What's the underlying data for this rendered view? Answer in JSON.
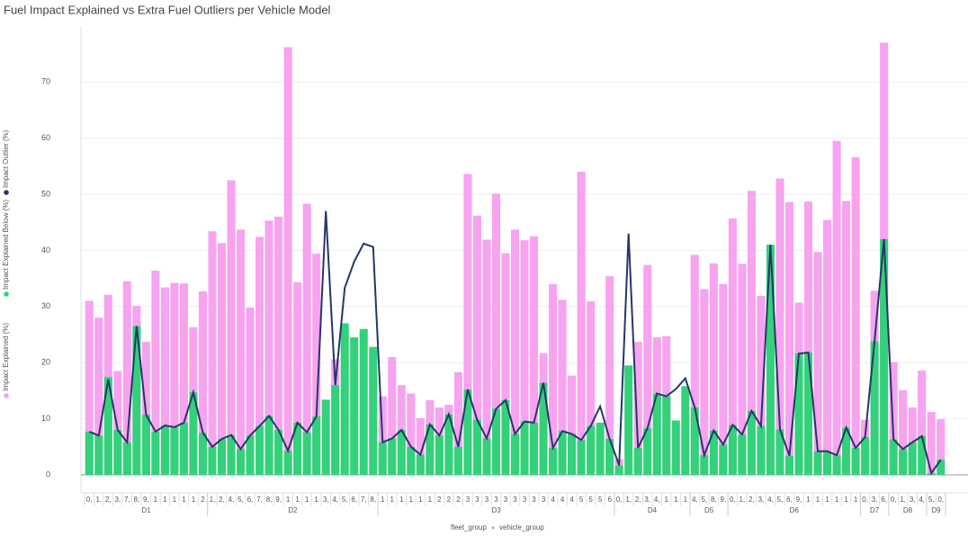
{
  "chart_data": {
    "type": "bar",
    "title": "Fuel Impact Explained vs Extra Fuel Outliers per Vehicle Model",
    "xlabel": [
      "fleet_group",
      "vehicle_group"
    ],
    "categories": [
      "0,",
      "1,",
      "2,",
      "3,",
      "7,",
      "8,",
      "9,",
      "1",
      "1",
      "1",
      "1",
      "1",
      "2",
      "1,",
      "2,",
      "4,",
      "5,",
      "6,",
      "7,",
      "8,",
      "9,",
      "1",
      "1",
      "1",
      "1",
      "3,",
      "4,",
      "5,",
      "6,",
      "7,",
      "8,",
      "1",
      "1",
      "1",
      "1",
      "1",
      "1",
      "2",
      "2",
      "2",
      "3",
      "3",
      "3",
      "3",
      "3",
      "3",
      "3",
      "3",
      "3",
      "4",
      "4",
      "4",
      "5",
      "5",
      "5",
      "6",
      "0,",
      "1,",
      "2,",
      "3,",
      "4,",
      "1",
      "1",
      "1",
      "4,",
      "5,",
      "8,",
      "9,",
      "0,",
      "1,",
      "2,",
      "3,",
      "4,",
      "5,",
      "6,",
      "9,",
      "1",
      "1",
      "1",
      "1",
      "1",
      "1",
      "0,",
      "3,",
      "6,",
      "0,",
      "1,",
      "3,",
      "4,",
      "5,",
      "0,"
    ],
    "fleet": [
      "D1",
      "D1",
      "D1",
      "D1",
      "D1",
      "D1",
      "D1",
      "D1",
      "D1",
      "D1",
      "D1",
      "D1",
      "D1",
      "D2",
      "D2",
      "D2",
      "D2",
      "D2",
      "D2",
      "D2",
      "D2",
      "D2",
      "D2",
      "D2",
      "D2",
      "D2",
      "D2",
      "D2",
      "D2",
      "D2",
      "D2",
      "D3",
      "D3",
      "D3",
      "D3",
      "D3",
      "D3",
      "D3",
      "D3",
      "D3",
      "D3",
      "D3",
      "D3",
      "D3",
      "D3",
      "D3",
      "D3",
      "D3",
      "D3",
      "D3",
      "D3",
      "D3",
      "D3",
      "D3",
      "D3",
      "D3",
      "D4",
      "D4",
      "D4",
      "D4",
      "D4",
      "D4",
      "D4",
      "D4",
      "D5",
      "D5",
      "D5",
      "D5",
      "D6",
      "D6",
      "D6",
      "D6",
      "D6",
      "D6",
      "D6",
      "D6",
      "D6",
      "D6",
      "D6",
      "D6",
      "D6",
      "D6",
      "D7",
      "D7",
      "D7",
      "D8",
      "D8",
      "D8",
      "D8",
      "D9",
      "D9"
    ],
    "series": [
      {
        "name": "Impact Explained (%)",
        "color": "#f7a3ef",
        "mark": "bar",
        "values": [
          31,
          28,
          32.1,
          18.5,
          34.5,
          30.1,
          23.7,
          36.4,
          33.4,
          34.2,
          34.1,
          26.3,
          32.7,
          43.4,
          41.3,
          52.5,
          43.7,
          29.8,
          42.4,
          45.3,
          46,
          76.2,
          34.3,
          48.3,
          39.4,
          null,
          20.6,
          null,
          null,
          null,
          null,
          14,
          21,
          16,
          14.5,
          10.1,
          13.3,
          12,
          12.5,
          18.3,
          53.6,
          46.2,
          41.9,
          50.1,
          39.5,
          43.7,
          41.8,
          42.5,
          21.7,
          34,
          31.2,
          17.7,
          54,
          30.9,
          null,
          35.4,
          2.8,
          null,
          23.7,
          37.4,
          24.5,
          24.7,
          null,
          null,
          39.2,
          33.1,
          37.7,
          34,
          45.7,
          37.6,
          50.6,
          31.9,
          null,
          52.8,
          48.6,
          30.7,
          48.7,
          39.7,
          45.4,
          59.5,
          48.8,
          56.6,
          9.8,
          32.8,
          77,
          20.1,
          15.1,
          12,
          18.6,
          11.2,
          9.9
        ]
      },
      {
        "name": "Impact Explained Below (%)",
        "color": "#33d17a",
        "mark": "bar",
        "values": [
          7.7,
          7,
          17.4,
          8,
          5.8,
          26.5,
          10.7,
          7.7,
          8.8,
          8.5,
          9.3,
          14.7,
          7.5,
          5,
          6.4,
          7.1,
          4.6,
          7,
          8.7,
          10.5,
          8,
          4.3,
          9.3,
          7.6,
          10.4,
          13.4,
          16,
          27,
          24.5,
          26,
          22.8,
          5.8,
          6.5,
          8,
          5,
          3.6,
          9,
          7,
          10.8,
          5,
          15.2,
          9.8,
          6.5,
          11.8,
          13.3,
          7.3,
          9.5,
          9.3,
          16.4,
          4.8,
          7.8,
          7.3,
          6.2,
          8.7,
          9.3,
          6.4,
          1.7,
          19.5,
          4.8,
          8.3,
          14.5,
          14,
          9.7,
          15.8,
          12,
          3.5,
          7.9,
          5.4,
          8.9,
          7.2,
          11.4,
          8.7,
          41,
          8.1,
          3.4,
          21.6,
          21.8,
          4.2,
          4.2,
          3.5,
          8.4,
          4.8,
          6.7,
          23.8,
          42,
          6.3,
          4.6,
          5.8,
          6.9,
          0.3,
          2.7
        ]
      },
      {
        "name": "Impact Outlier (%)",
        "color": "#26366b",
        "mark": "line",
        "values": [
          7.7,
          7,
          17,
          8,
          5.8,
          26.5,
          10.7,
          7.7,
          8.8,
          8.5,
          9.3,
          14.7,
          7.5,
          5,
          6.4,
          7.1,
          4.6,
          7,
          8.7,
          10.5,
          8,
          4.3,
          9.3,
          7.6,
          10.4,
          47,
          16,
          33.3,
          38,
          41.2,
          40.6,
          5.8,
          6.5,
          8,
          5,
          3.6,
          9,
          7,
          10.8,
          5,
          15.2,
          9.8,
          6.5,
          11.8,
          13.3,
          7.3,
          9.5,
          9.3,
          16.4,
          4.8,
          7.8,
          7.3,
          6.2,
          8.7,
          12.2,
          6.4,
          1.7,
          43,
          4.8,
          8.3,
          14.5,
          14,
          15.3,
          17.2,
          12,
          3.5,
          7.9,
          5.4,
          8.9,
          7.2,
          11.4,
          8.7,
          41,
          8.1,
          3.4,
          21.6,
          21.8,
          4.2,
          4.2,
          3.5,
          8.4,
          4.8,
          6.7,
          23.8,
          42,
          6.3,
          4.6,
          5.8,
          6.9,
          0.3,
          2.7
        ]
      }
    ],
    "ylim": [
      -3.2,
      79.8
    ],
    "yticks": [
      0,
      10,
      20,
      30,
      40,
      50,
      60,
      70
    ],
    "grid": true
  }
}
